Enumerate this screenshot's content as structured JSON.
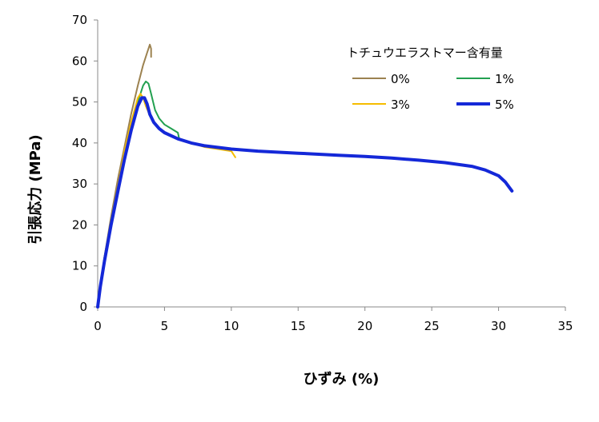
{
  "chart_data": {
    "type": "line",
    "title": "",
    "xlabel": "ひずみ (%)",
    "ylabel": "引張応力 (MPa)",
    "xlim": [
      0,
      35
    ],
    "ylim": [
      0,
      70
    ],
    "x_ticks": [
      "0",
      "5",
      "10",
      "15",
      "20",
      "25",
      "30",
      "35"
    ],
    "y_ticks": [
      "0",
      "10",
      "20",
      "30",
      "40",
      "50",
      "60",
      "70"
    ],
    "grid": false,
    "legend": {
      "title": "トチュウエラストマー含有量",
      "position": "top-right"
    },
    "series": [
      {
        "name": "0%",
        "color": "#9C8250",
        "x": [
          0,
          0.2,
          0.5,
          1.0,
          1.5,
          2.0,
          2.5,
          3.0,
          3.4,
          3.7,
          3.9,
          4.0,
          4.0
        ],
        "y": [
          0,
          5,
          12,
          22,
          31,
          39,
          47,
          54,
          59,
          62,
          64,
          63,
          61
        ]
      },
      {
        "name": "1%",
        "color": "#22A050",
        "x": [
          0,
          0.2,
          0.5,
          1.0,
          1.5,
          2.0,
          2.5,
          3.0,
          3.4,
          3.6,
          3.8,
          4.0,
          4.3,
          4.6,
          5.0,
          5.5,
          6.0,
          6.1
        ],
        "y": [
          0,
          5,
          12,
          21,
          29,
          37,
          44,
          50,
          54,
          55,
          54.5,
          52,
          48,
          46,
          44.5,
          43.5,
          42.5,
          41
        ]
      },
      {
        "name": "3%",
        "color": "#F5BC00",
        "x": [
          0,
          0.2,
          0.5,
          1.0,
          1.5,
          2.0,
          2.5,
          3.0,
          3.2,
          3.4,
          3.6,
          4.0,
          4.5,
          5.0,
          6.0,
          7.0,
          8.0,
          9.0,
          10.0,
          10.3
        ],
        "y": [
          0,
          5,
          12,
          21,
          29,
          38,
          45,
          51,
          52,
          51,
          49,
          46,
          44,
          42.5,
          41,
          40,
          39,
          38.5,
          38,
          36.5
        ]
      },
      {
        "name": "5%",
        "color": "#1428D8",
        "x": [
          0,
          0.2,
          0.5,
          1.0,
          1.5,
          2.0,
          2.5,
          3.0,
          3.3,
          3.5,
          3.7,
          3.9,
          4.2,
          4.6,
          5.0,
          6.0,
          7.0,
          8.0,
          10.0,
          12.0,
          15.0,
          18.0,
          20.0,
          22.0,
          24.0,
          26.0,
          28.0,
          29.0,
          30.0,
          30.5,
          31.0
        ],
        "y": [
          0,
          5,
          11,
          20,
          28,
          36,
          43,
          49,
          51,
          51,
          49.5,
          47,
          45,
          43.5,
          42.5,
          41,
          40,
          39.3,
          38.5,
          38,
          37.5,
          37,
          36.7,
          36.3,
          35.8,
          35.2,
          34.3,
          33.4,
          32,
          30.5,
          28.3
        ]
      }
    ]
  }
}
